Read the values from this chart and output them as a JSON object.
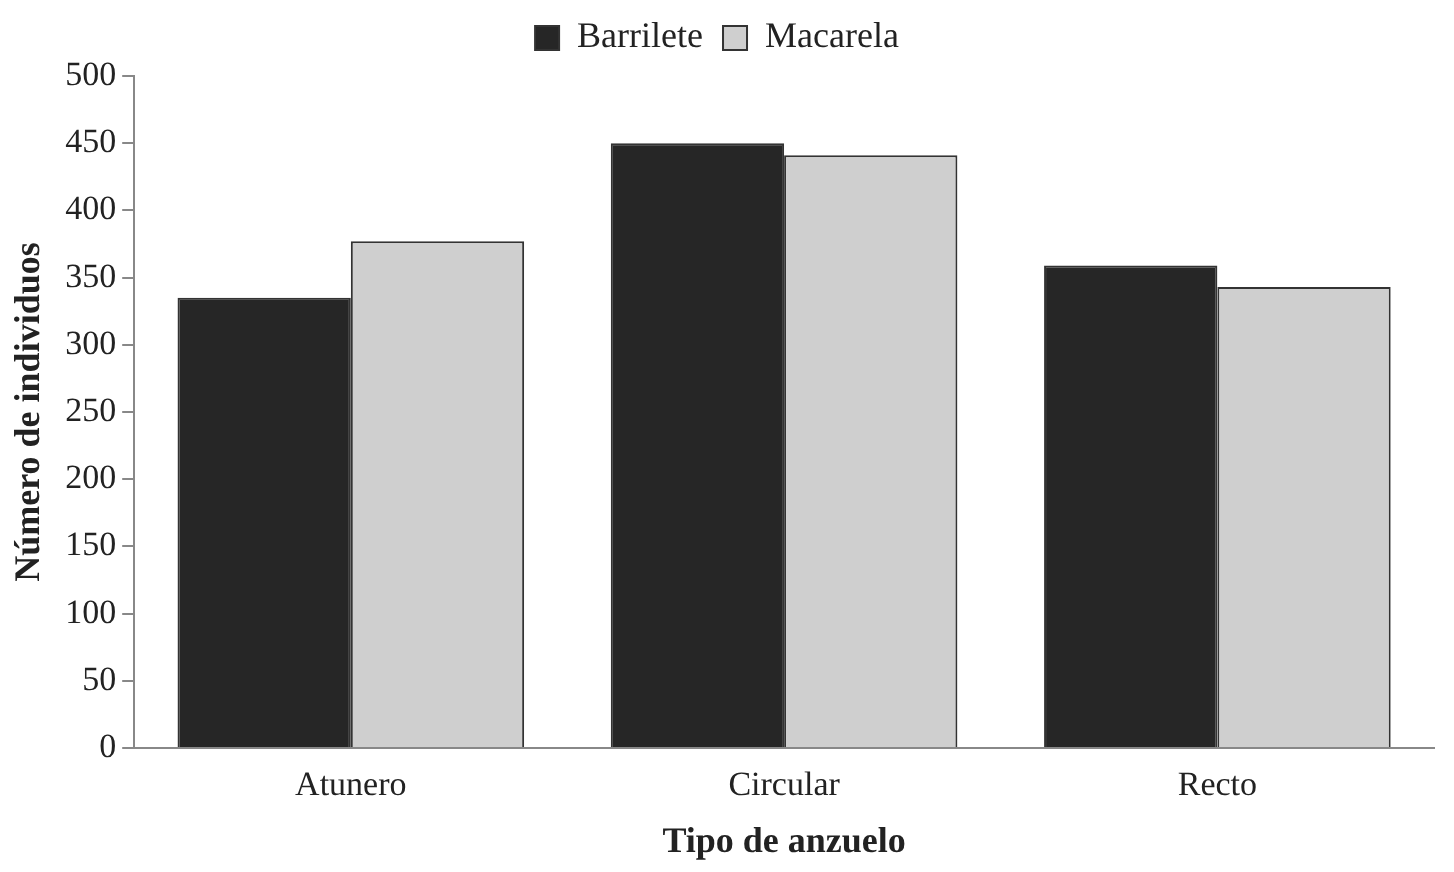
{
  "chart_data": {
    "type": "bar",
    "xlabel": "Tipo de anzuelo",
    "ylabel": "Número de individuos",
    "categories": [
      "Atunero",
      "Circular",
      "Recto"
    ],
    "series": [
      {
        "name": "Barrilete",
        "color": "#262626",
        "values": [
          335,
          450,
          359
        ]
      },
      {
        "name": "Macarela",
        "color": "#cfcfcf",
        "values": [
          377,
          441,
          343
        ]
      }
    ],
    "ylim": [
      0,
      500
    ],
    "yticks": [
      0,
      50,
      100,
      150,
      200,
      250,
      300,
      350,
      400,
      450,
      500
    ],
    "grid": false,
    "legend": "top"
  }
}
